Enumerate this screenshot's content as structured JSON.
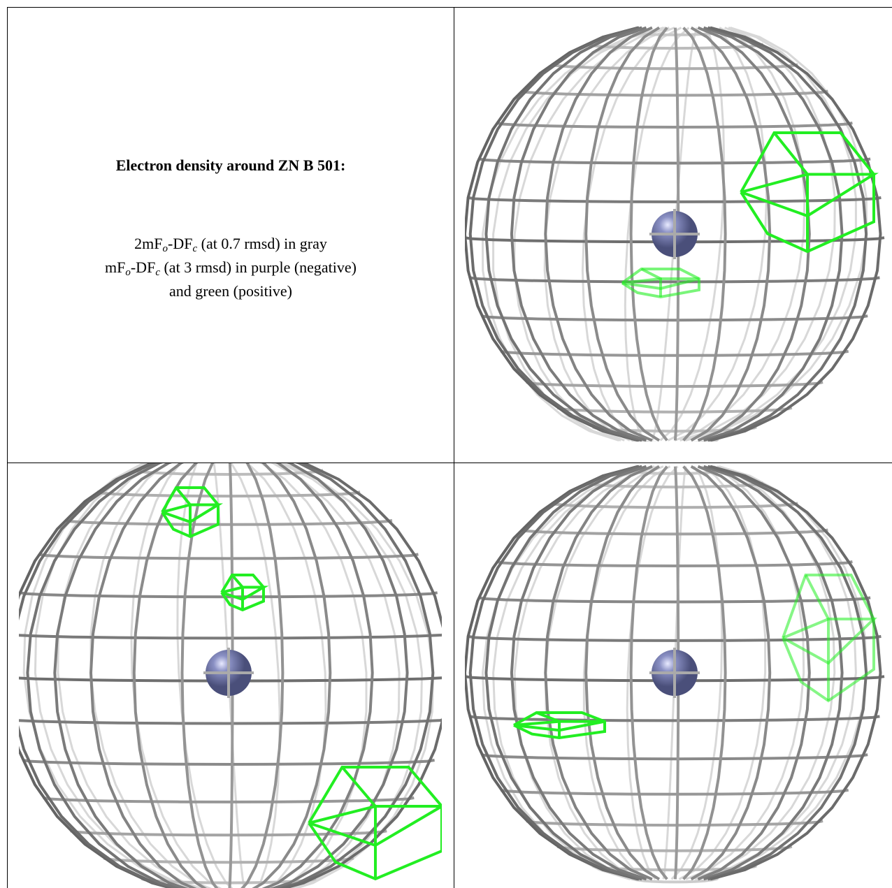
{
  "panel_text": {
    "title": "Electron density around ZN B 501:",
    "lines": [
      [
        "2mF",
        "o",
        "-DF",
        "c",
        " (at 0.7 rmsd) in gray"
      ],
      [
        "mF",
        "o",
        "-DF",
        "c",
        " (at 3 rmsd) in purple (negative)"
      ],
      [
        "and green (positive)"
      ]
    ]
  }
}
